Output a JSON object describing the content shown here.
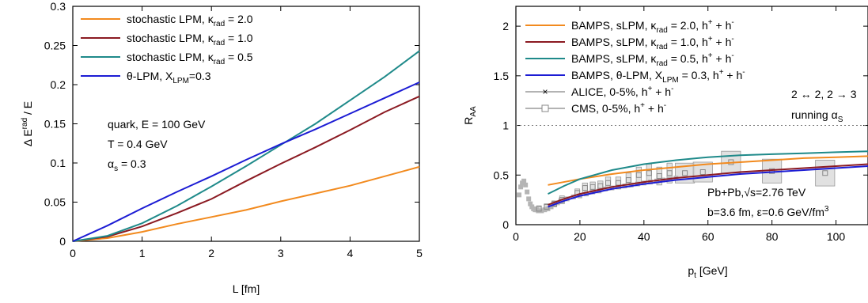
{
  "chart_data": [
    {
      "type": "line",
      "xlabel": "L [fm]",
      "ylabel_main": "Δ E",
      "ylabel_sup": "rad",
      "ylabel_tail": " / E",
      "xlim": [
        0,
        5
      ],
      "ylim": [
        0,
        0.3
      ],
      "x_ticks": [
        0,
        1,
        2,
        3,
        4,
        5
      ],
      "x_tick_labels": [
        "0",
        "1",
        "2",
        "3",
        "4",
        "5"
      ],
      "y_ticks": [
        0,
        0.05,
        0.1,
        0.15,
        0.2,
        0.25,
        0.3
      ],
      "y_tick_labels": [
        "0",
        "0.05",
        "0.1",
        "0.15",
        "0.2",
        "0.25",
        "0.3"
      ],
      "grid": false,
      "legend_position": "top-left",
      "series": [
        {
          "name": "stochastic LPM, κrad = 2.0",
          "legend": [
            "stochastic LPM, κ",
            "rad",
            " = 2.0"
          ],
          "color": "#f28a1e",
          "x": [
            0,
            0.5,
            1,
            1.5,
            2,
            2.5,
            3,
            3.5,
            4,
            4.5,
            5
          ],
          "y": [
            0,
            0.004,
            0.012,
            0.022,
            0.031,
            0.04,
            0.051,
            0.061,
            0.071,
            0.083,
            0.095
          ]
        },
        {
          "name": "stochastic LPM, κrad = 1.0",
          "legend": [
            "stochastic LPM, κ",
            "rad",
            " = 1.0"
          ],
          "color": "#8b1a22",
          "x": [
            0,
            0.5,
            1,
            1.5,
            2,
            2.5,
            3,
            3.5,
            4,
            4.5,
            5
          ],
          "y": [
            0,
            0.006,
            0.019,
            0.036,
            0.054,
            0.077,
            0.099,
            0.12,
            0.142,
            0.165,
            0.185
          ]
        },
        {
          "name": "stochastic LPM, κrad = 0.5",
          "legend": [
            "stochastic LPM, κ",
            "rad",
            " = 0.5"
          ],
          "color": "#1f8a8a",
          "x": [
            0,
            0.5,
            1,
            1.5,
            2,
            2.5,
            3,
            3.5,
            4,
            4.5,
            5
          ],
          "y": [
            0,
            0.007,
            0.023,
            0.045,
            0.07,
            0.096,
            0.123,
            0.15,
            0.18,
            0.21,
            0.243
          ]
        },
        {
          "name": "θ-LPM, XLPM=0.3",
          "legend": [
            "θ-LPM, X",
            "LPM",
            "=0.3"
          ],
          "color": "#1c1cd4",
          "x": [
            0,
            0.5,
            1,
            1.5,
            2,
            2.5,
            3,
            3.5,
            4,
            4.5,
            5
          ],
          "y": [
            0,
            0.02,
            0.042,
            0.063,
            0.083,
            0.104,
            0.124,
            0.143,
            0.163,
            0.183,
            0.203
          ]
        }
      ],
      "annotations": [
        [
          "quark, E = 100 GeV",
          "",
          ""
        ],
        [
          "T = 0.4 GeV",
          "",
          ""
        ],
        [
          "α",
          "s",
          " = 0.3"
        ]
      ]
    },
    {
      "type": "line",
      "xlabel_main": "p",
      "xlabel_sub": "t",
      "xlabel_tail": " [GeV]",
      "ylabel_main": "R",
      "ylabel_sub": "AA",
      "xlim": [
        0,
        110
      ],
      "ylim": [
        0,
        2.2
      ],
      "x_ticks": [
        0,
        20,
        40,
        60,
        80,
        100
      ],
      "x_tick_labels": [
        "0",
        "20",
        "40",
        "60",
        "80",
        "100"
      ],
      "y_ticks": [
        0,
        0.5,
        1,
        1.5,
        2
      ],
      "y_tick_labels": [
        "0",
        "0.5",
        "1",
        "1.5",
        "2"
      ],
      "reference_line_y": 1,
      "grid": false,
      "legend_position": "top-left",
      "series": [
        {
          "name": "BAMPS, sLPM, κrad = 2.0, h+ + h-",
          "legend": [
            "BAMPS, sLPM, κ",
            "rad",
            " = 2.0, h",
            "+",
            " + h",
            "-"
          ],
          "color": "#f28a1e",
          "x": [
            10,
            20,
            30,
            40,
            50,
            60,
            70,
            80,
            90,
            100,
            110
          ],
          "y": [
            0.4,
            0.46,
            0.51,
            0.55,
            0.58,
            0.61,
            0.63,
            0.65,
            0.67,
            0.68,
            0.69
          ]
        },
        {
          "name": "BAMPS, sLPM, κrad = 1.0, h+ + h-",
          "legend": [
            "BAMPS, sLPM, κ",
            "rad",
            " = 1.0, h",
            "+",
            " + h",
            "-"
          ],
          "color": "#8b1a22",
          "x": [
            10,
            15,
            20,
            30,
            40,
            50,
            60,
            70,
            80,
            90,
            100,
            110
          ],
          "y": [
            0.2,
            0.26,
            0.31,
            0.38,
            0.43,
            0.47,
            0.5,
            0.53,
            0.55,
            0.57,
            0.59,
            0.61
          ]
        },
        {
          "name": "BAMPS, sLPM, κrad = 0.5, h+ + h-",
          "legend": [
            "BAMPS, sLPM, κ",
            "rad",
            " = 0.5, h",
            "+",
            " + h",
            "-"
          ],
          "color": "#1f8a8a",
          "x": [
            10,
            15,
            20,
            30,
            40,
            50,
            60,
            70,
            80,
            90,
            100,
            110
          ],
          "y": [
            0.31,
            0.39,
            0.46,
            0.55,
            0.61,
            0.65,
            0.68,
            0.7,
            0.71,
            0.72,
            0.73,
            0.74
          ]
        },
        {
          "name": "BAMPS, θ-LPM, XLPM = 0.3, h+ + h-",
          "legend": [
            "BAMPS, θ-LPM, X",
            "LPM",
            " = 0.3, h",
            "+",
            " + h",
            "-"
          ],
          "color": "#1c1cd4",
          "x": [
            10,
            15,
            20,
            30,
            40,
            50,
            60,
            70,
            80,
            90,
            100,
            110
          ],
          "y": [
            0.18,
            0.24,
            0.29,
            0.36,
            0.41,
            0.45,
            0.48,
            0.51,
            0.53,
            0.55,
            0.57,
            0.59
          ]
        }
      ],
      "data_series": [
        {
          "name": "ALICE, 0-5%, h+ + h-",
          "legend": [
            "ALICE, 0-5%, h",
            "+",
            " + h",
            "-"
          ],
          "marker": "x",
          "x": [
            1,
            1.5,
            2,
            2.5,
            3,
            3.5,
            4,
            4.5,
            5,
            5.5,
            6,
            6.5,
            7,
            8,
            9,
            10,
            11,
            12,
            13,
            14,
            16,
            18,
            20,
            22,
            24,
            26,
            28,
            30,
            32,
            34,
            36,
            38,
            40,
            42,
            44,
            46,
            48,
            50
          ],
          "y": [
            0.3,
            0.38,
            0.42,
            0.44,
            0.4,
            0.33,
            0.26,
            0.21,
            0.18,
            0.16,
            0.15,
            0.15,
            0.14,
            0.14,
            0.15,
            0.16,
            0.18,
            0.2,
            0.22,
            0.24,
            0.26,
            0.28,
            0.29,
            0.31,
            0.33,
            0.34,
            0.36,
            0.37,
            0.38,
            0.39,
            0.4,
            0.41,
            0.42,
            0.43,
            0.44,
            0.45,
            0.46,
            0.47
          ]
        },
        {
          "name": "CMS, 0-5%, h+ + h-",
          "legend": [
            "CMS, 0-5%, h",
            "+",
            " + h",
            "-"
          ],
          "marker": "square",
          "x": [
            7.2,
            9.6,
            12,
            14.4,
            19.2,
            21.6,
            24,
            26.4,
            28.8,
            32,
            35.2,
            38.4,
            41.6,
            44.8,
            48,
            52.8,
            58.4,
            67.2,
            80,
            96.6
          ],
          "y": [
            0.16,
            0.18,
            0.21,
            0.25,
            0.32,
            0.37,
            0.38,
            0.39,
            0.42,
            0.42,
            0.45,
            0.5,
            0.52,
            0.49,
            0.52,
            0.52,
            0.53,
            0.63,
            0.54,
            0.52
          ],
          "sys_err": [
            0.03,
            0.03,
            0.03,
            0.04,
            0.04,
            0.05,
            0.05,
            0.05,
            0.06,
            0.06,
            0.07,
            0.08,
            0.09,
            0.09,
            0.1,
            0.1,
            0.1,
            0.11,
            0.12,
            0.13
          ]
        }
      ],
      "annotations": [
        {
          "text": [
            "2 ↔ 2, 2 → 3"
          ],
          "position": "top-right"
        },
        {
          "text": [
            "running α",
            "S",
            ""
          ],
          "position": "top-right"
        },
        {
          "text": [
            "Pb+Pb,√s=2.76 TeV"
          ],
          "position": "bottom-right"
        },
        {
          "text": [
            "b=3.6 fm, ε=0.6 GeV/fm",
            "3",
            ""
          ],
          "position": "bottom-right",
          "sup": true
        }
      ]
    }
  ]
}
